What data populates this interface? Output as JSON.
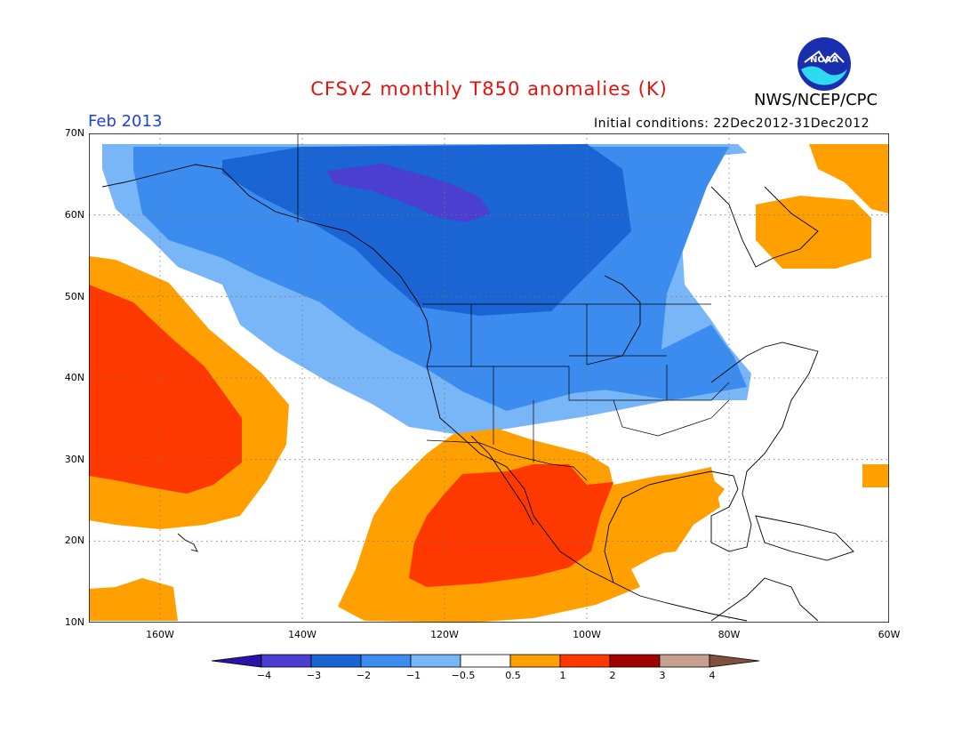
{
  "title": "CFSv2 monthly T850 anomalies (K)",
  "agency": "NWS/NCEP/CPC",
  "logo_text": "NOAA",
  "valid_month": "Feb 2013",
  "initial_conditions": "Initial conditions: 22Dec2012-31Dec2012",
  "lat_labels": [
    "70N",
    "60N",
    "50N",
    "40N",
    "30N",
    "20N",
    "10N"
  ],
  "lon_labels": [
    "160W",
    "140W",
    "120W",
    "100W",
    "80W",
    "60W"
  ],
  "colorbar": {
    "labels": [
      "−4",
      "−3",
      "−2",
      "−1",
      "−0.5",
      "0.5",
      "1",
      "2",
      "3",
      "4"
    ],
    "colors": [
      "#2a14a8",
      "#4a3fd0",
      "#1a64d4",
      "#3c8cf0",
      "#78b6f8",
      "#ffffff",
      "#ff9f00",
      "#ff3800",
      "#a00000",
      "#c8a090",
      "#80503c"
    ]
  },
  "colors": {
    "neg3": "#4a3fd0",
    "neg2": "#1a64d4",
    "neg1": "#3c8cf0",
    "neg05": "#78b6f8",
    "pos05": "#ff9f00",
    "pos1": "#ff3800",
    "title_red": "#e8100c",
    "month_blue": "#1f3fe0"
  }
}
